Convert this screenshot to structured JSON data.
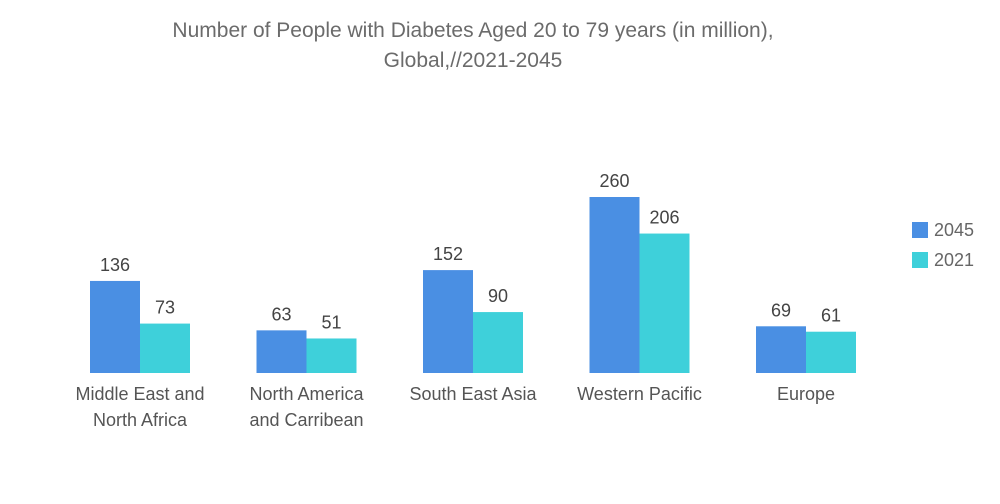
{
  "chart_data": {
    "type": "bar",
    "title_lines": [
      "Number of People with Diabetes Aged 20 to 79 years (in million),",
      "Global,//2021-2045"
    ],
    "categories": [
      [
        "Middle East and",
        "North Africa"
      ],
      [
        "North America",
        "and Carribean"
      ],
      [
        "South East Asia"
      ],
      [
        "Western Pacific"
      ],
      [
        "Europe"
      ]
    ],
    "series": [
      {
        "name": "2045",
        "color": "#4a8fe3",
        "values": [
          136,
          63,
          152,
          260,
          69
        ]
      },
      {
        "name": "2021",
        "color": "#3ed0da",
        "values": [
          73,
          51,
          90,
          206,
          61
        ]
      }
    ],
    "xlabel": "",
    "ylabel": "",
    "ylim": [
      0,
      260
    ],
    "grid": false,
    "legend_position": "right"
  }
}
